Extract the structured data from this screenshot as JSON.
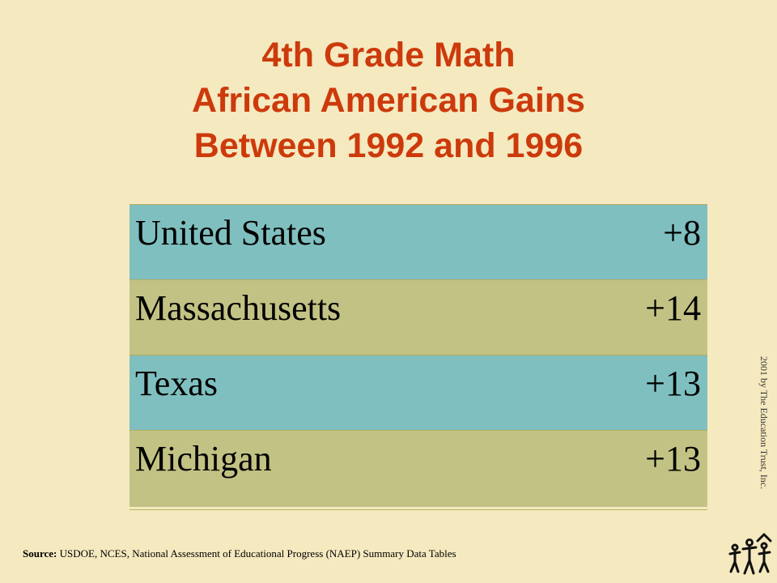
{
  "title": {
    "line1": "4th Grade Math",
    "line2": "African American Gains",
    "line3": "Between 1992 and 1996"
  },
  "table": {
    "rows": [
      {
        "label": "United States",
        "value": "+8",
        "color": "#7fbfbf"
      },
      {
        "label": "Massachusetts",
        "value": "+14",
        "color": "#c2c284"
      },
      {
        "label": "Texas",
        "value": "+13",
        "color": "#7fbfbf"
      },
      {
        "label": "Michigan",
        "value": "+13",
        "color": "#c2c284"
      }
    ]
  },
  "source": {
    "label": "Source:",
    "text": "USDOE, NCES, National Assessment of Educational Progress (NAEP) Summary Data Tables"
  },
  "copyright": "2001 by The Education Trust, Inc.",
  "logo": {
    "icon": "education-trust-logo-icon"
  },
  "colors": {
    "background": "#f5e9bf",
    "title": "#cc3a0c",
    "row_blue": "#7fbfbf",
    "row_olive": "#c2c284"
  }
}
